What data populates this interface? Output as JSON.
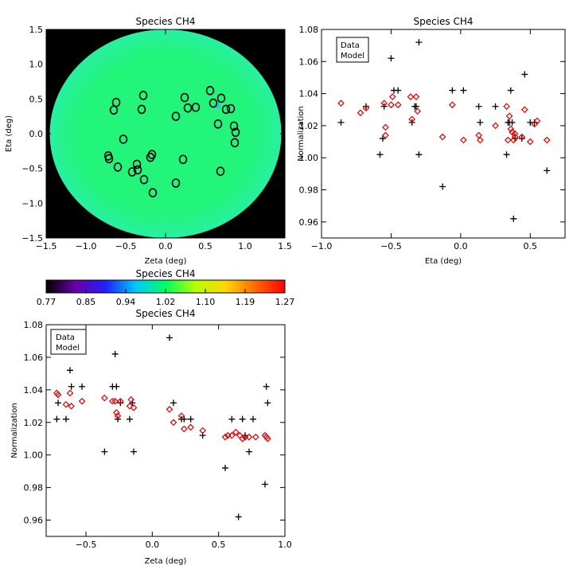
{
  "chart_data": [
    {
      "id": "map",
      "type": "heatmap",
      "title": "Species CH4",
      "xlabel": "Zeta (deg)",
      "ylabel": "Eta (deg)",
      "xlim": [
        -1.5,
        1.5
      ],
      "ylim": [
        -1.5,
        1.5
      ],
      "xticks": [
        -1.5,
        -1.0,
        -0.5,
        0.0,
        0.5,
        1.0,
        1.5
      ],
      "yticks": [
        -1.5,
        -1.0,
        -0.5,
        0.0,
        0.5,
        1.0,
        1.5
      ],
      "colors": {
        "background": "#000000",
        "disk": "#22f57a",
        "disk_edge": "#28f0a0",
        "marker": "#000000",
        "marker_accent": "#1ec8f0"
      },
      "markers": [
        [
          -0.62,
          0.45
        ],
        [
          -0.65,
          0.34
        ],
        [
          -0.28,
          0.55
        ],
        [
          -0.3,
          0.35
        ],
        [
          0.24,
          0.52
        ],
        [
          0.28,
          0.37
        ],
        [
          0.38,
          0.38
        ],
        [
          0.56,
          0.62
        ],
        [
          0.6,
          0.44
        ],
        [
          0.7,
          0.51
        ],
        [
          0.76,
          0.35
        ],
        [
          0.82,
          0.36
        ],
        [
          0.66,
          0.14
        ],
        [
          0.86,
          0.11
        ],
        [
          0.88,
          0.02
        ],
        [
          0.87,
          -0.13
        ],
        [
          0.13,
          0.25
        ],
        [
          -0.53,
          -0.08
        ],
        [
          -0.72,
          -0.32
        ],
        [
          -0.71,
          -0.36
        ],
        [
          -0.6,
          -0.48
        ],
        [
          -0.42,
          -0.55
        ],
        [
          -0.36,
          -0.44
        ],
        [
          -0.35,
          -0.52
        ],
        [
          -0.19,
          -0.34
        ],
        [
          -0.17,
          -0.3
        ],
        [
          -0.27,
          -0.66
        ],
        [
          -0.16,
          -0.85
        ],
        [
          0.22,
          -0.37
        ],
        [
          0.13,
          -0.71
        ],
        [
          0.69,
          -0.54
        ]
      ],
      "accent_marker": [
        0.65,
        0.4
      ]
    },
    {
      "id": "eta",
      "type": "scatter",
      "title": "Species CH4",
      "xlabel": "Eta (deg)",
      "ylabel": "Normalization",
      "xlim": [
        -1.0,
        0.75
      ],
      "ylim": [
        0.95,
        1.08
      ],
      "xticks": [
        -1.0,
        -0.5,
        0.0,
        0.5
      ],
      "yticks": [
        0.96,
        0.98,
        1.0,
        1.02,
        1.04,
        1.06,
        1.08
      ],
      "legend": {
        "position": "top-left",
        "entries": [
          "Data",
          "Model"
        ]
      },
      "series": [
        {
          "name": "Data",
          "marker": "plus",
          "color": "#000000",
          "points": [
            [
              -0.86,
              1.022
            ],
            [
              -0.68,
              1.032
            ],
            [
              -0.58,
              1.002
            ],
            [
              -0.56,
              1.012
            ],
            [
              -0.55,
              1.032
            ],
            [
              -0.5,
              1.062
            ],
            [
              -0.48,
              1.042
            ],
            [
              -0.45,
              1.042
            ],
            [
              -0.35,
              1.022
            ],
            [
              -0.33,
              1.032
            ],
            [
              -0.32,
              1.032
            ],
            [
              -0.3,
              1.002
            ],
            [
              -0.13,
              0.982
            ],
            [
              -0.06,
              1.042
            ],
            [
              0.02,
              1.042
            ],
            [
              0.13,
              1.032
            ],
            [
              0.14,
              1.022
            ],
            [
              0.25,
              1.032
            ],
            [
              0.33,
              1.002
            ],
            [
              0.34,
              1.022
            ],
            [
              0.35,
              1.022
            ],
            [
              0.36,
              1.042
            ],
            [
              0.37,
              1.022
            ],
            [
              0.38,
              0.962
            ],
            [
              0.39,
              1.012
            ],
            [
              0.44,
              1.012
            ],
            [
              0.46,
              1.052
            ],
            [
              0.5,
              1.022
            ],
            [
              0.53,
              1.022
            ],
            [
              0.62,
              0.992
            ],
            [
              -0.3,
              1.072
            ]
          ]
        },
        {
          "name": "Model",
          "marker": "diamond",
          "color": "#dd0000",
          "points": [
            [
              -0.86,
              1.034
            ],
            [
              -0.72,
              1.028
            ],
            [
              -0.68,
              1.031
            ],
            [
              -0.55,
              1.034
            ],
            [
              -0.54,
              1.019
            ],
            [
              -0.54,
              1.014
            ],
            [
              -0.5,
              1.033
            ],
            [
              -0.49,
              1.038
            ],
            [
              -0.45,
              1.033
            ],
            [
              -0.36,
              1.038
            ],
            [
              -0.35,
              1.024
            ],
            [
              -0.32,
              1.038
            ],
            [
              -0.31,
              1.029
            ],
            [
              -0.13,
              1.013
            ],
            [
              -0.06,
              1.033
            ],
            [
              0.02,
              1.011
            ],
            [
              0.13,
              1.014
            ],
            [
              0.14,
              1.011
            ],
            [
              0.25,
              1.02
            ],
            [
              0.33,
              1.032
            ],
            [
              0.34,
              1.011
            ],
            [
              0.35,
              1.026
            ],
            [
              0.36,
              1.018
            ],
            [
              0.37,
              1.016
            ],
            [
              0.38,
              1.011
            ],
            [
              0.39,
              1.013
            ],
            [
              0.44,
              1.013
            ],
            [
              0.46,
              1.03
            ],
            [
              0.5,
              1.01
            ],
            [
              0.53,
              1.021
            ],
            [
              0.55,
              1.023
            ],
            [
              0.62,
              1.011
            ],
            [
              0.39,
              1.015
            ]
          ]
        }
      ]
    },
    {
      "id": "zeta",
      "type": "scatter",
      "title": "Species CH4",
      "xlabel": "Zeta (deg)",
      "ylabel": "Normalization",
      "xlim": [
        -0.8,
        1.0
      ],
      "ylim": [
        0.95,
        1.08
      ],
      "xticks": [
        -0.5,
        0.0,
        0.5,
        1.0
      ],
      "yticks": [
        0.96,
        0.98,
        1.0,
        1.02,
        1.04,
        1.06,
        1.08
      ],
      "legend": {
        "position": "top-left",
        "entries": [
          "Data",
          "Model"
        ]
      },
      "series": [
        {
          "name": "Data",
          "marker": "plus",
          "color": "#000000",
          "points": [
            [
              -0.72,
              1.022
            ],
            [
              -0.71,
              1.032
            ],
            [
              -0.65,
              1.022
            ],
            [
              -0.62,
              1.052
            ],
            [
              -0.61,
              1.042
            ],
            [
              -0.53,
              1.042
            ],
            [
              -0.36,
              1.002
            ],
            [
              -0.3,
              1.042
            ],
            [
              -0.28,
              1.062
            ],
            [
              -0.27,
              1.042
            ],
            [
              -0.26,
              1.022
            ],
            [
              -0.24,
              1.032
            ],
            [
              -0.17,
              1.022
            ],
            [
              -0.15,
              1.032
            ],
            [
              -0.14,
              1.002
            ],
            [
              0.13,
              1.072
            ],
            [
              0.16,
              1.032
            ],
            [
              0.22,
              1.022
            ],
            [
              0.24,
              1.022
            ],
            [
              0.29,
              1.022
            ],
            [
              0.38,
              1.012
            ],
            [
              0.55,
              0.992
            ],
            [
              0.6,
              1.022
            ],
            [
              0.65,
              0.962
            ],
            [
              0.68,
              1.022
            ],
            [
              0.7,
              1.012
            ],
            [
              0.73,
              1.002
            ],
            [
              0.76,
              1.022
            ],
            [
              0.85,
              0.982
            ],
            [
              0.86,
              1.042
            ],
            [
              0.87,
              1.032
            ]
          ]
        },
        {
          "name": "Model",
          "marker": "diamond",
          "color": "#dd0000",
          "points": [
            [
              -0.72,
              1.038
            ],
            [
              -0.71,
              1.037
            ],
            [
              -0.65,
              1.031
            ],
            [
              -0.62,
              1.038
            ],
            [
              -0.61,
              1.03
            ],
            [
              -0.53,
              1.033
            ],
            [
              -0.36,
              1.035
            ],
            [
              -0.3,
              1.033
            ],
            [
              -0.28,
              1.033
            ],
            [
              -0.27,
              1.026
            ],
            [
              -0.26,
              1.024
            ],
            [
              -0.24,
              1.033
            ],
            [
              -0.17,
              1.03
            ],
            [
              -0.16,
              1.034
            ],
            [
              -0.14,
              1.029
            ],
            [
              0.13,
              1.028
            ],
            [
              0.16,
              1.02
            ],
            [
              0.22,
              1.024
            ],
            [
              0.24,
              1.016
            ],
            [
              0.29,
              1.017
            ],
            [
              0.38,
              1.015
            ],
            [
              0.55,
              1.011
            ],
            [
              0.57,
              1.012
            ],
            [
              0.6,
              1.012
            ],
            [
              0.63,
              1.014
            ],
            [
              0.66,
              1.012
            ],
            [
              0.68,
              1.01
            ],
            [
              0.7,
              1.011
            ],
            [
              0.73,
              1.011
            ],
            [
              0.78,
              1.011
            ],
            [
              0.85,
              1.012
            ],
            [
              0.86,
              1.011
            ],
            [
              0.87,
              1.01
            ]
          ]
        }
      ]
    },
    {
      "id": "colorbar",
      "type": "heatmap",
      "title": "Species CH4",
      "range": [
        0.77,
        1.27
      ],
      "tick_labels": [
        "0.77",
        "0.85",
        "0.94",
        "1.02",
        "1.10",
        "1.19",
        "1.27"
      ],
      "colors": [
        "#000000",
        "#6a00a8",
        "#2020ff",
        "#00c8ff",
        "#00ff60",
        "#b4ff00",
        "#ffd800",
        "#ff6a00",
        "#ff0000"
      ]
    }
  ]
}
